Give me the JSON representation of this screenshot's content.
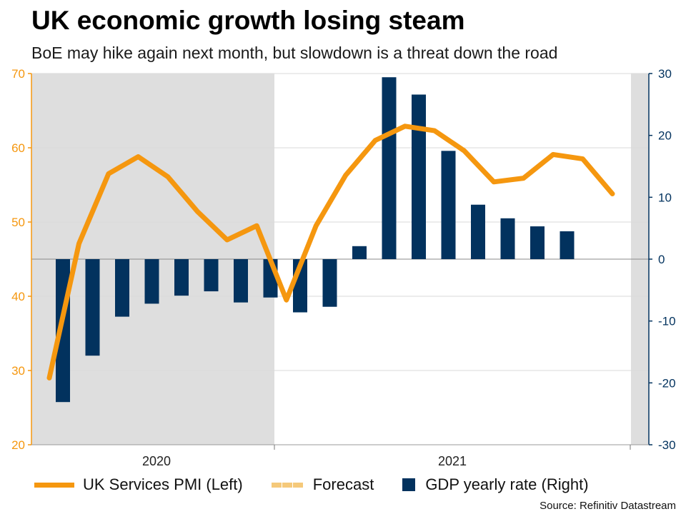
{
  "header": {
    "title": "UK economic growth losing steam",
    "subtitle": "BoE may hike again next month, but slowdown is a threat down the road"
  },
  "legend": {
    "pmi": "UK Services PMI (Left)",
    "forecast": "Forecast",
    "gdp": "GDP yearly rate (Right)"
  },
  "source": "Source: Refinitiv Datastream",
  "colors": {
    "pmi": "#f5970f",
    "forecast": "#f5c97a",
    "gdp": "#02325e",
    "left_axis": "#f5970f",
    "right_axis": "#02325e",
    "shade": "#dedede"
  },
  "chart_data": {
    "type": "bar+line",
    "x_ticks": [
      "2020",
      "2021"
    ],
    "left_axis": {
      "min": 20,
      "max": 70,
      "ticks": [
        20,
        30,
        40,
        50,
        60,
        70
      ]
    },
    "right_axis": {
      "min": -30,
      "max": 30,
      "ticks": [
        -30,
        -20,
        -10,
        0,
        10,
        20,
        30
      ]
    },
    "series": [
      {
        "name": "UK Services PMI (Left)",
        "kind": "line",
        "axis": "left",
        "values": [
          29.0,
          47.1,
          56.5,
          58.8,
          56.1,
          51.4,
          47.6,
          49.5,
          39.5,
          49.5,
          56.3,
          61.0,
          62.9,
          62.3,
          59.6,
          55.4,
          55.9,
          59.1,
          58.5,
          53.8
        ]
      },
      {
        "name": "GDP yearly rate (Right)",
        "kind": "bar",
        "axis": "right",
        "values": [
          -23.1,
          -15.6,
          -9.3,
          -7.2,
          -5.9,
          -5.2,
          -7.0,
          -6.2,
          -8.6,
          -7.7,
          2.1,
          29.4,
          26.6,
          17.5,
          8.8,
          6.6,
          5.3,
          4.5
        ]
      }
    ],
    "shaded_regions": "recession/forecast periods shaded gray",
    "grid": true
  }
}
